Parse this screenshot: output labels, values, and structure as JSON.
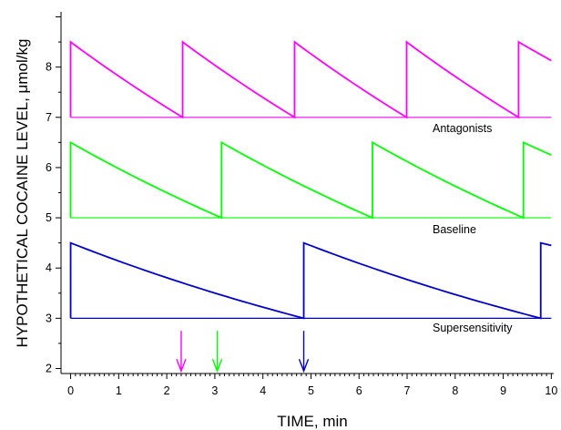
{
  "chart_data": {
    "type": "line",
    "xlabel": "TIME, min",
    "ylabel": "HYPOTHETICAL COCAINE LEVEL, μmol/kg",
    "xlim": [
      -0.2,
      10.05
    ],
    "ylim": [
      1.9,
      9.1
    ],
    "xticks": [
      "0",
      "1",
      "2",
      "3",
      "4",
      "5",
      "6",
      "7",
      "8",
      "9",
      "10"
    ],
    "yticks": [
      "2",
      "3",
      "4",
      "5",
      "6",
      "7",
      "8"
    ],
    "grid": false,
    "series": [
      {
        "name": "Antagonists",
        "color": "#ff00ff",
        "threshold": 7,
        "peak": 8.5,
        "injection_times": [
          0,
          2.33,
          4.66,
          6.99,
          9.32
        ],
        "end_level": 8.13,
        "arrow_time": 2.3
      },
      {
        "name": "Baseline",
        "color": "#00ff00",
        "threshold": 5,
        "peak": 6.5,
        "injection_times": [
          0,
          3.14,
          6.28,
          9.42
        ],
        "end_level": 6.25,
        "arrow_time": 3.05
      },
      {
        "name": "Supersensitivity",
        "color": "#0000cc",
        "threshold": 3,
        "peak": 4.5,
        "injection_times": [
          0,
          4.85,
          9.78
        ],
        "end_level": 4.45,
        "arrow_time": 4.85
      }
    ]
  }
}
